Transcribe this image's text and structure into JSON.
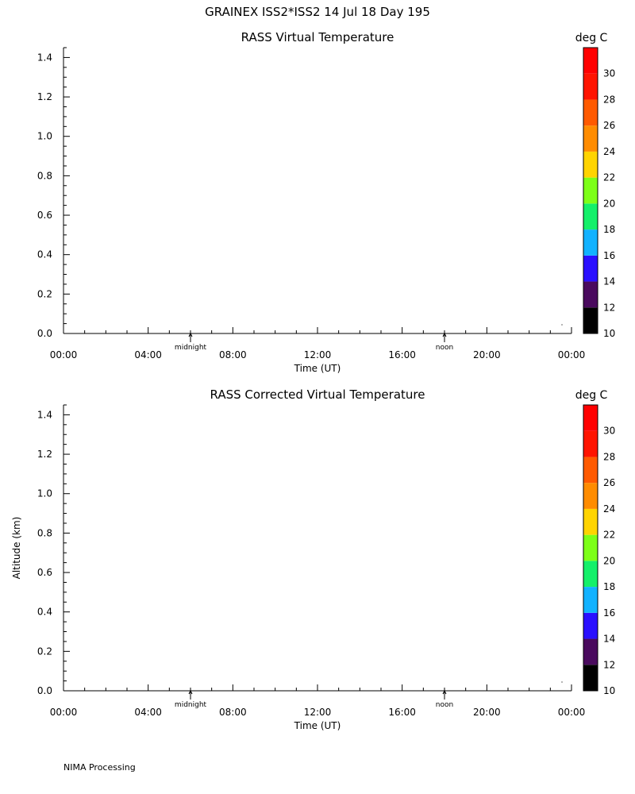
{
  "header": {
    "title": "GRAINEX ISS2*ISS2  14 Jul 18 Day 195"
  },
  "footer": {
    "text": "NIMA Processing"
  },
  "chart_data": [
    {
      "type": "heatmap",
      "title": "RASS Virtual Temperature",
      "colorbar_unit": "deg C",
      "xlabel": "Time (UT)",
      "ylabel": "",
      "xlim": [
        0,
        24
      ],
      "ylim": [
        0,
        1.45
      ],
      "x_ticks": [
        {
          "value": 0,
          "label": "00:00"
        },
        {
          "value": 4,
          "label": "04:00"
        },
        {
          "value": 8,
          "label": "08:00"
        },
        {
          "value": 12,
          "label": "12:00"
        },
        {
          "value": 16,
          "label": "16:00"
        },
        {
          "value": 20,
          "label": "20:00"
        },
        {
          "value": 24,
          "label": "00:00"
        }
      ],
      "y_ticks": [
        {
          "value": 0.0,
          "label": "0.0"
        },
        {
          "value": 0.2,
          "label": "0.2"
        },
        {
          "value": 0.4,
          "label": "0.4"
        },
        {
          "value": 0.6,
          "label": "0.6"
        },
        {
          "value": 0.8,
          "label": "0.8"
        },
        {
          "value": 1.0,
          "label": "1.0"
        },
        {
          "value": 1.2,
          "label": "1.2"
        },
        {
          "value": 1.4,
          "label": "1.4"
        }
      ],
      "markers": [
        {
          "x": 6,
          "label": "midnight"
        },
        {
          "x": 18,
          "label": "noon"
        }
      ],
      "colorbar": {
        "range": [
          10,
          32
        ],
        "labels": [
          "10",
          "12",
          "14",
          "16",
          "18",
          "20",
          "22",
          "24",
          "26",
          "28",
          "30"
        ],
        "label_values": [
          10,
          12,
          14,
          16,
          18,
          20,
          22,
          24,
          26,
          28,
          30
        ],
        "colors": [
          "#000000",
          "#4a0a5e",
          "#2a10ff",
          "#12b2ff",
          "#14f06a",
          "#7dff18",
          "#ffd400",
          "#ff8c00",
          "#ff5a00",
          "#ff1400",
          "#ff0000"
        ]
      },
      "points": []
    },
    {
      "type": "heatmap",
      "title": "RASS Corrected Virtual Temperature",
      "colorbar_unit": "deg C",
      "xlabel": "Time (UT)",
      "ylabel": "Altitude (km)",
      "xlim": [
        0,
        24
      ],
      "ylim": [
        0,
        1.45
      ],
      "x_ticks": [
        {
          "value": 0,
          "label": "00:00"
        },
        {
          "value": 4,
          "label": "04:00"
        },
        {
          "value": 8,
          "label": "08:00"
        },
        {
          "value": 12,
          "label": "12:00"
        },
        {
          "value": 16,
          "label": "16:00"
        },
        {
          "value": 20,
          "label": "20:00"
        },
        {
          "value": 24,
          "label": "00:00"
        }
      ],
      "y_ticks": [
        {
          "value": 0.0,
          "label": "0.0"
        },
        {
          "value": 0.2,
          "label": "0.2"
        },
        {
          "value": 0.4,
          "label": "0.4"
        },
        {
          "value": 0.6,
          "label": "0.6"
        },
        {
          "value": 0.8,
          "label": "0.8"
        },
        {
          "value": 1.0,
          "label": "1.0"
        },
        {
          "value": 1.2,
          "label": "1.2"
        },
        {
          "value": 1.4,
          "label": "1.4"
        }
      ],
      "markers": [
        {
          "x": 6,
          "label": "midnight"
        },
        {
          "x": 18,
          "label": "noon"
        }
      ],
      "colorbar": {
        "range": [
          10,
          32
        ],
        "labels": [
          "10",
          "12",
          "14",
          "16",
          "18",
          "20",
          "22",
          "24",
          "26",
          "28",
          "30"
        ],
        "label_values": [
          10,
          12,
          14,
          16,
          18,
          20,
          22,
          24,
          26,
          28,
          30
        ],
        "colors": [
          "#000000",
          "#4a0a5e",
          "#2a10ff",
          "#12b2ff",
          "#14f06a",
          "#7dff18",
          "#ffd400",
          "#ff8c00",
          "#ff5a00",
          "#ff1400",
          "#ff0000"
        ]
      },
      "points": []
    }
  ]
}
